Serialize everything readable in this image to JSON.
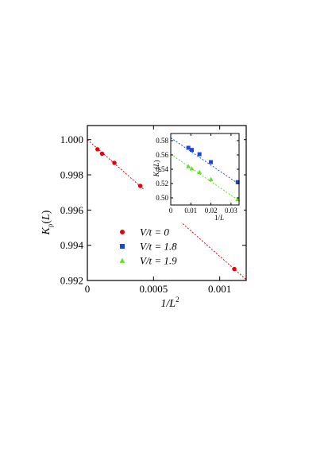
{
  "chart_data": [
    {
      "type": "scatter",
      "xlabel": "1/L²",
      "ylabel": "Kρ(L)",
      "xlim": [
        0,
        0.0012
      ],
      "ylim": [
        0.992,
        1.0008
      ],
      "x_ticks": [
        {
          "v": 0,
          "label": "0"
        },
        {
          "v": 0.0005,
          "label": "0.0005"
        },
        {
          "v": 0.001,
          "label": "0.001"
        }
      ],
      "y_ticks": [
        {
          "v": 0.992,
          "label": "0.992"
        },
        {
          "v": 0.994,
          "label": "0.994"
        },
        {
          "v": 0.996,
          "label": "0.996"
        },
        {
          "v": 0.998,
          "label": "0.998"
        },
        {
          "v": 1.0,
          "label": "1.000"
        }
      ],
      "legend_position": "lower-center",
      "series": [
        {
          "name": "V/t = 0",
          "color": "#e3000f",
          "marker": "circle",
          "x": [
            7.65e-05,
            0.000111,
            0.000204,
            0.0004,
            0.00111
          ],
          "y": [
            0.99945,
            0.9992,
            0.99868,
            0.99737,
            0.99265
          ],
          "fit": {
            "x": [
              0,
              0.0012
            ],
            "y": [
              1.0,
              0.99205
            ]
          }
        }
      ]
    },
    {
      "type": "scatter",
      "xlabel": "1/L",
      "ylabel": "Kσ(L)",
      "xlim": [
        0,
        0.034
      ],
      "ylim": [
        0.49,
        0.59
      ],
      "x_ticks": [
        {
          "v": 0,
          "label": "0"
        },
        {
          "v": 0.01,
          "label": "0.01"
        },
        {
          "v": 0.02,
          "label": "0.02"
        },
        {
          "v": 0.03,
          "label": "0.03"
        }
      ],
      "y_ticks": [
        {
          "v": 0.5,
          "label": "0.50"
        },
        {
          "v": 0.52,
          "label": "0.52"
        },
        {
          "v": 0.54,
          "label": "0.54"
        },
        {
          "v": 0.56,
          "label": "0.56"
        },
        {
          "v": 0.58,
          "label": "0.58"
        }
      ],
      "series": [
        {
          "name": "V/t = 1.8",
          "color": "#1447e6",
          "marker": "square",
          "x": [
            0.00875,
            0.0105,
            0.0143,
            0.02,
            0.0333
          ],
          "y": [
            0.57,
            0.567,
            0.561,
            0.55,
            0.522
          ],
          "fit": {
            "x": [
              0,
              0.034
            ],
            "y": [
              0.584,
              0.519
            ]
          }
        },
        {
          "name": "V/t = 1.9",
          "color": "#66e026",
          "marker": "triangle",
          "x": [
            0.00875,
            0.0105,
            0.0143,
            0.02,
            0.0333
          ],
          "y": [
            0.544,
            0.541,
            0.536,
            0.526,
            0.498
          ],
          "fit": {
            "x": [
              0,
              0.034
            ],
            "y": [
              0.561,
              0.496
            ]
          }
        }
      ]
    }
  ]
}
